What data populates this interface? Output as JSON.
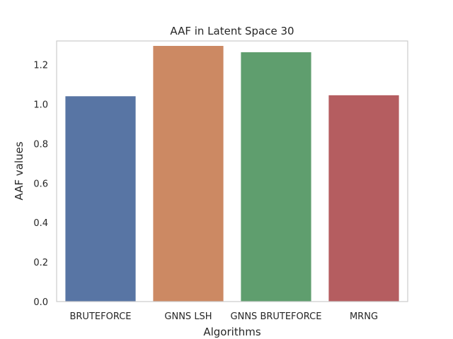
{
  "chart_data": {
    "type": "bar",
    "title": "AAF in Latent Space 30",
    "xlabel": "Algorithms",
    "ylabel": "AAF values",
    "categories": [
      "BRUTEFORCE",
      "GNNS LSH",
      "GNNS BRUTEFORCE",
      "MRNG"
    ],
    "values": [
      1.04,
      1.295,
      1.263,
      1.045
    ],
    "colors": [
      "#5875a4",
      "#cc8963",
      "#5f9e6e",
      "#b55d60"
    ],
    "ylim": [
      0,
      1.32
    ],
    "yticks": [
      0.0,
      0.2,
      0.4,
      0.6,
      0.8,
      1.0,
      1.2
    ],
    "ytick_labels": [
      "0.0",
      "0.2",
      "0.4",
      "0.6",
      "0.8",
      "1.0",
      "1.2"
    ],
    "grid": false,
    "legend": "none"
  }
}
